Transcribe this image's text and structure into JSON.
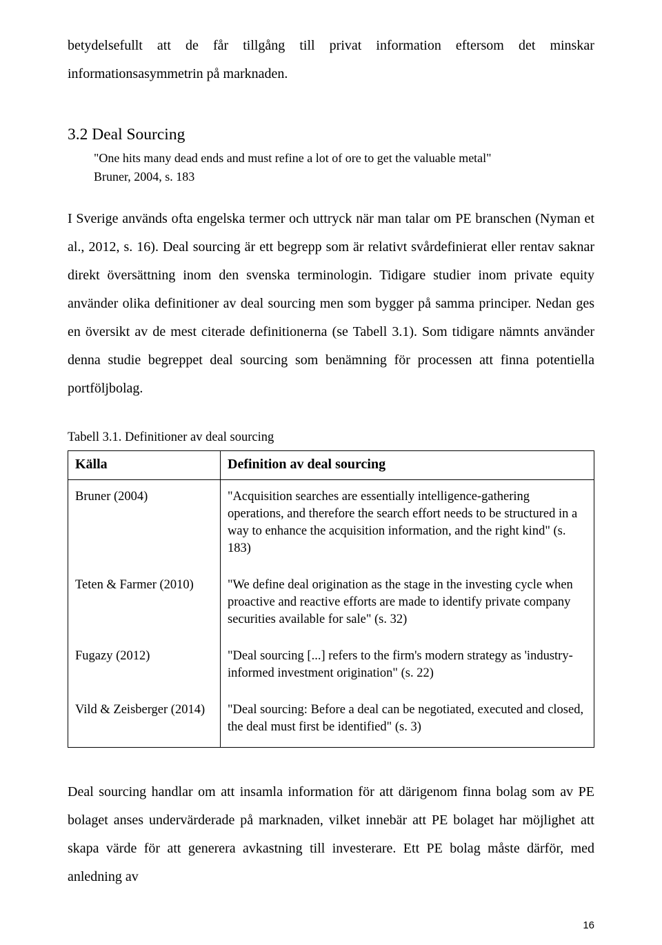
{
  "intro": {
    "line1_words": [
      "betydelsefullt",
      "att",
      "de",
      "får",
      "tillgång",
      "till",
      "privat",
      "information",
      "eftersom",
      "det",
      "minskar"
    ],
    "line2": "informationsasymmetrin på marknaden."
  },
  "section": {
    "heading": "3.2 Deal Sourcing",
    "quote": "\"One hits many dead ends and must refine a lot of ore to get the valuable metal\"",
    "cite": "Bruner, 2004, s. 183"
  },
  "para2": "I Sverige används ofta engelska termer och uttryck när man talar om PE branschen (Nyman et al., 2012, s. 16). Deal sourcing är ett begrepp som är relativt svårdefinierat eller rentav saknar direkt översättning inom den svenska terminologin. Tidigare studier inom private equity använder olika definitioner av deal sourcing men som bygger på samma principer. Nedan ges en översikt av de mest citerade definitionerna (se Tabell 3.1). Som tidigare nämnts använder denna studie begreppet deal sourcing som benämning för processen att finna potentiella portföljbolag.",
  "table": {
    "caption": "Tabell 3.1. Definitioner av deal sourcing",
    "col1": "Källa",
    "col2": "Definition av deal sourcing",
    "rows": [
      {
        "source": "Bruner (2004)",
        "def": "\"Acquisition searches are essentially intelligence-gathering operations, and therefore the search effort needs to be structured in a way to enhance the acquisition information, and the right kind\" (s. 183)"
      },
      {
        "source": "Teten & Farmer (2010)",
        "def": "\"We define deal origination as the stage in the investing cycle when proactive and reactive efforts are made to identify private company securities available for sale\" (s. 32)"
      },
      {
        "source": "Fugazy (2012)",
        "def": "\"Deal sourcing [...] refers to the firm's modern strategy as 'industry-informed investment origination\" (s. 22)"
      },
      {
        "source": "Vild & Zeisberger (2014)",
        "def": "\"Deal sourcing: Before a deal can be negotiated, executed and closed, the deal must first be identified\" (s. 3)"
      }
    ]
  },
  "para3": "Deal sourcing handlar om att insamla information för att därigenom finna bolag som av PE bolaget anses undervärderade på marknaden, vilket innebär att PE bolaget har möjlighet att skapa värde för att generera avkastning till investerare. Ett PE bolag måste därför, med anledning av",
  "pagenum": "16"
}
